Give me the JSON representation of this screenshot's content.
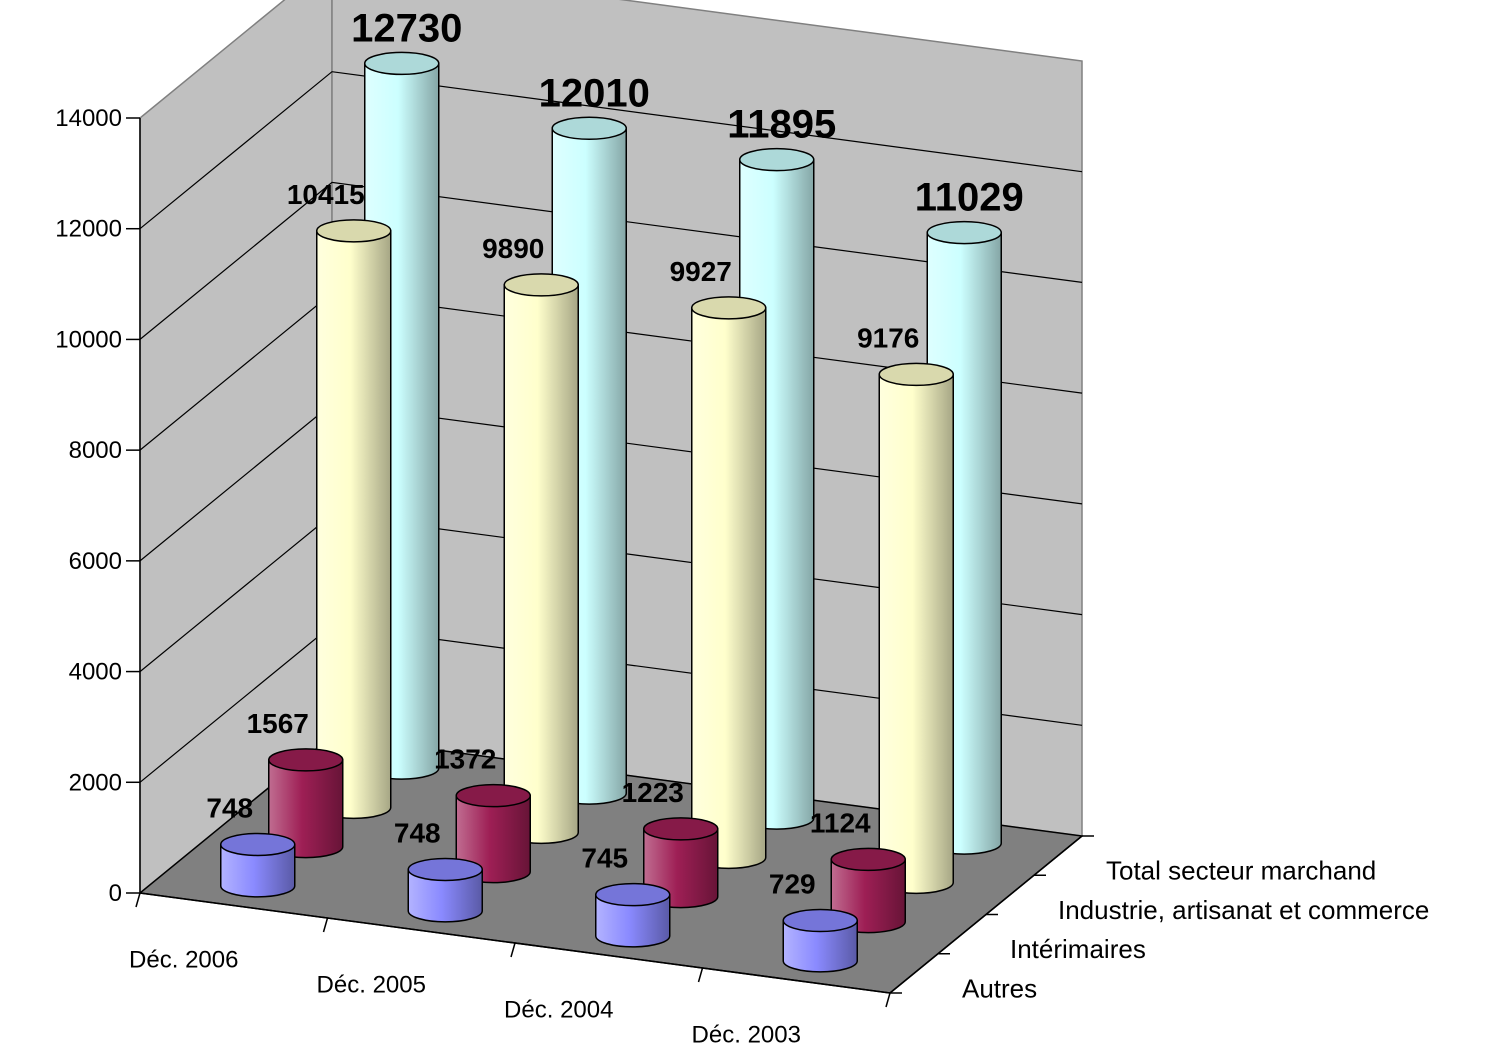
{
  "chart_data": {
    "type": "bar",
    "variant": "3d-cylinder",
    "categories": [
      "Déc. 2006",
      "Déc. 2005",
      "Déc. 2004",
      "Déc. 2003"
    ],
    "series": [
      {
        "name": "Autres",
        "values": [
          748,
          748,
          745,
          729
        ],
        "color": "#8a8aff"
      },
      {
        "name": "Intérimaires",
        "values": [
          1567,
          1372,
          1223,
          1124
        ],
        "color": "#9e1f55"
      },
      {
        "name": "Industrie, artisanat et commerce",
        "values": [
          10415,
          9890,
          9927,
          9176
        ],
        "color": "#ffffcc"
      },
      {
        "name": "Total secteur marchand",
        "values": [
          12730,
          12010,
          11895,
          11029
        ],
        "color": "#ccffff"
      }
    ],
    "value_labels": {
      "series_0": [
        "748",
        "748",
        "745",
        "729"
      ],
      "series_1": [
        "1567",
        "1372",
        "1223",
        "1124"
      ],
      "series_2": [
        "10415",
        "9890",
        "9927",
        "9176"
      ],
      "series_3": [
        "12730",
        "12010",
        "11895",
        "11029"
      ]
    },
    "ylim": [
      0,
      14000
    ],
    "yticks": [
      "0",
      "2000",
      "4000",
      "6000",
      "8000",
      "10000",
      "12000",
      "14000"
    ],
    "grid": true,
    "wall_color": "#c0c0c0",
    "floor_color": "#808080"
  }
}
